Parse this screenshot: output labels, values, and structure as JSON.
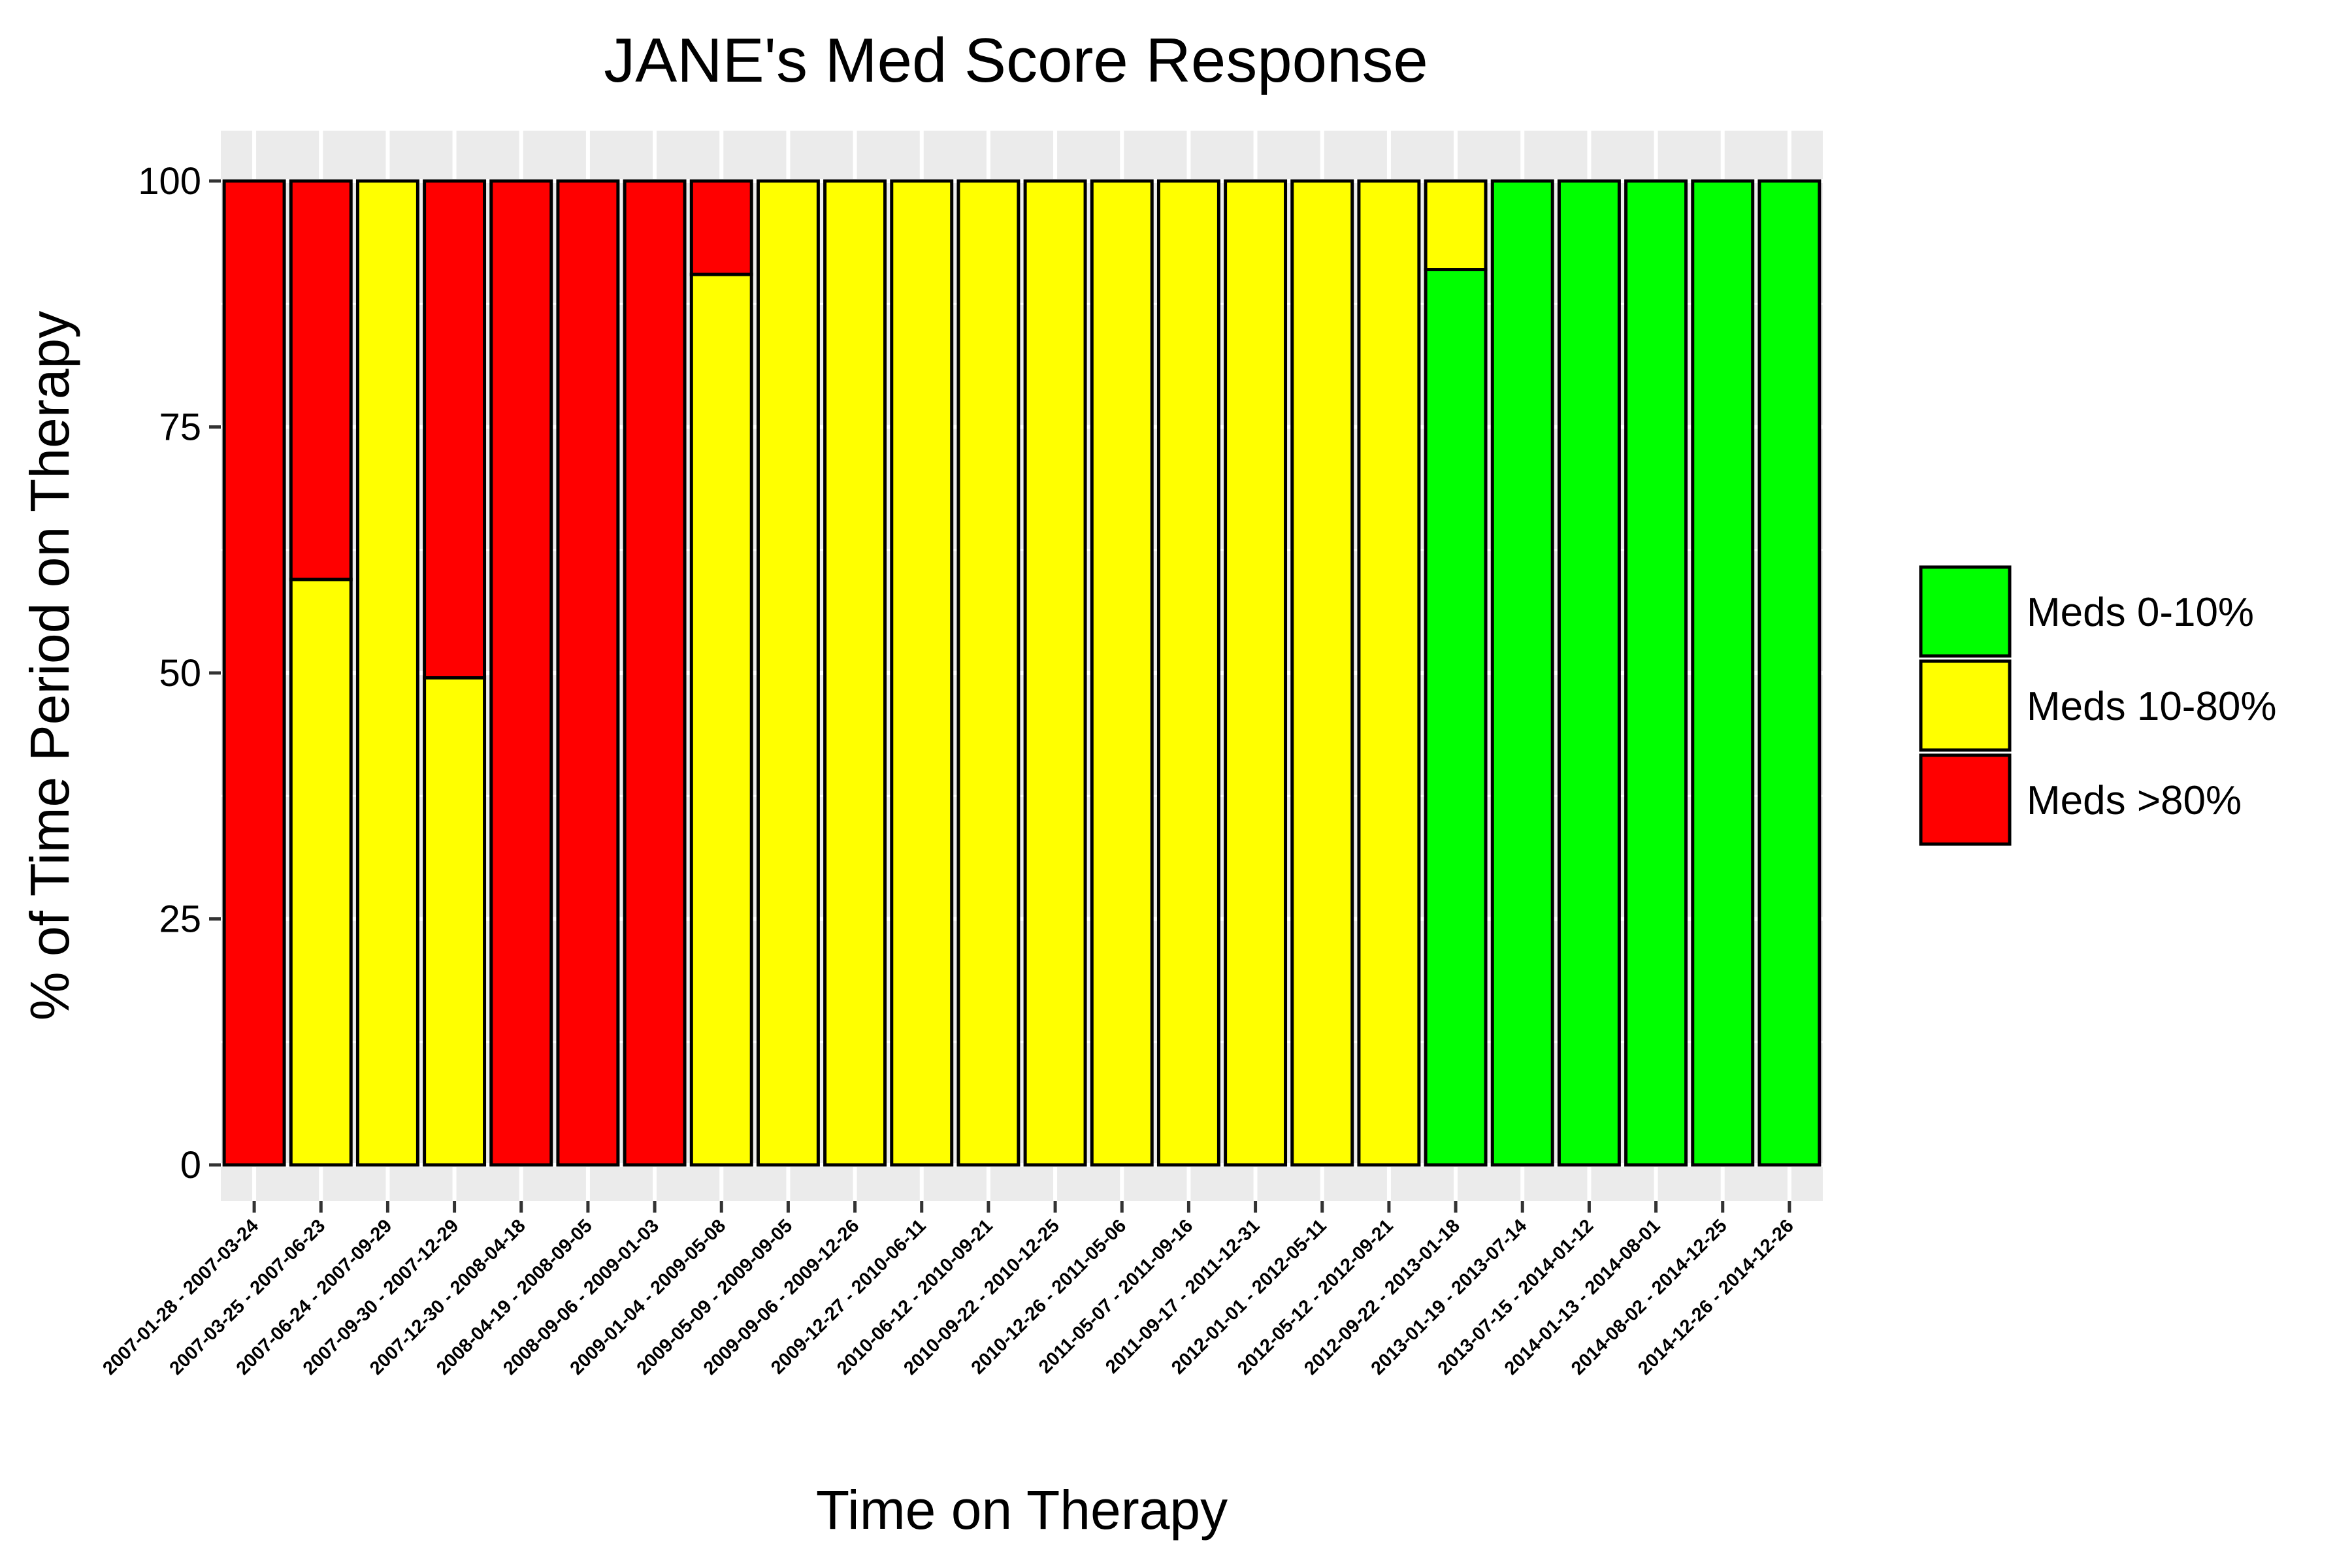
{
  "chart_data": {
    "type": "bar",
    "stacked": true,
    "title": "JANE's Med Score Response",
    "xlabel": "Time on Therapy",
    "ylabel": "% of Time Period on Therapy",
    "ylim": [
      0,
      100
    ],
    "yticks": [
      0,
      25,
      50,
      75,
      100
    ],
    "grid": true,
    "legend_position": "right",
    "categories": [
      "2007-01-28 - 2007-03-24",
      "2007-03-25 - 2007-06-23",
      "2007-06-24 - 2007-09-29",
      "2007-09-30 - 2007-12-29",
      "2007-12-30 - 2008-04-18",
      "2008-04-19 - 2008-09-05",
      "2008-09-06 - 2009-01-03",
      "2009-01-04 - 2009-05-08",
      "2009-05-09 - 2009-09-05",
      "2009-09-06 - 2009-12-26",
      "2009-12-27 - 2010-06-11",
      "2010-06-12 - 2010-09-21",
      "2010-09-22 - 2010-12-25",
      "2010-12-26 - 2011-05-06",
      "2011-05-07 - 2011-09-16",
      "2011-09-17 - 2011-12-31",
      "2012-01-01 - 2012-05-11",
      "2012-05-12 - 2012-09-21",
      "2012-09-22 - 2013-01-18",
      "2013-01-19 - 2013-07-14",
      "2013-07-15 - 2014-01-12",
      "2014-01-13 - 2014-08-01",
      "2014-08-02 - 2014-12-25",
      "2014-12-26 - 2014-12-26"
    ],
    "series": [
      {
        "name": "Meds 0-10%",
        "color": "#00ff00",
        "values": [
          0,
          0,
          0,
          0,
          0,
          0,
          0,
          0,
          0,
          0,
          0,
          0,
          0,
          0,
          0,
          0,
          0,
          0,
          91,
          100,
          100,
          100,
          100,
          100
        ]
      },
      {
        "name": "Meds 10-80%",
        "color": "#ffff00",
        "values": [
          0,
          59.5,
          100,
          49.5,
          0,
          0,
          0,
          90.5,
          100,
          100,
          100,
          100,
          100,
          100,
          100,
          100,
          100,
          100,
          9,
          0,
          0,
          0,
          0,
          0
        ]
      },
      {
        "name": "Meds >80%",
        "color": "#ff0000",
        "values": [
          100,
          40.5,
          0,
          50.5,
          100,
          100,
          100,
          9.5,
          0,
          0,
          0,
          0,
          0,
          0,
          0,
          0,
          0,
          0,
          0,
          0,
          0,
          0,
          0,
          0
        ]
      }
    ]
  }
}
